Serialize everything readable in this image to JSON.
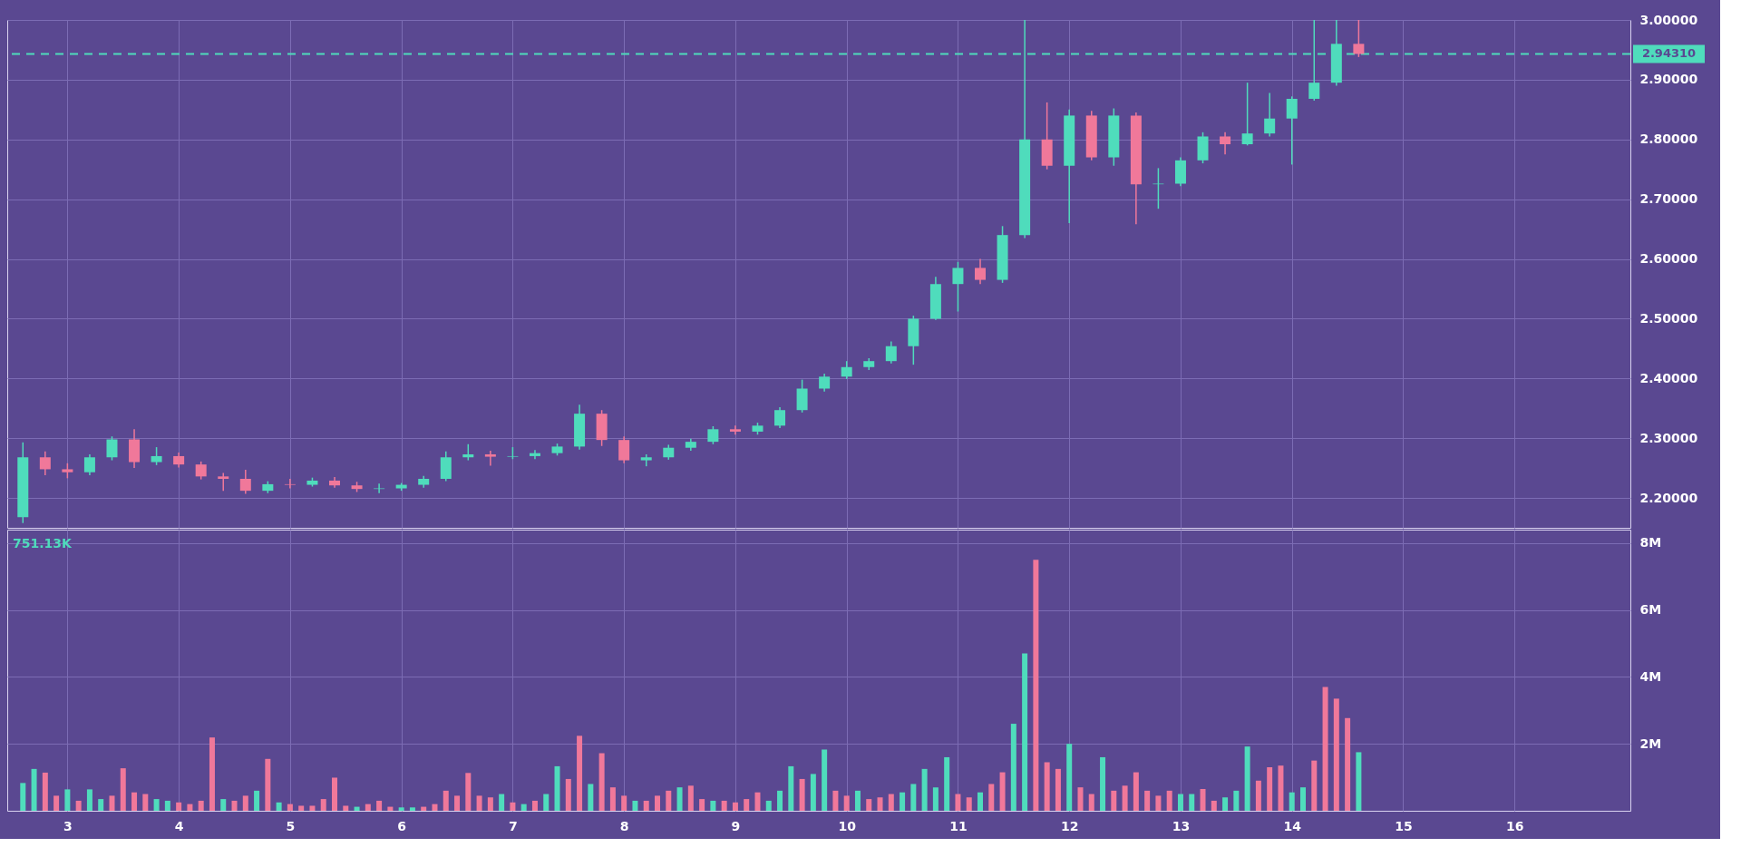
{
  "chart_data": [
    {
      "type": "candlestick",
      "x": [
        2.6,
        2.8,
        3.0,
        3.2,
        3.4,
        3.6,
        3.8,
        4.0,
        4.2,
        4.4,
        4.6,
        4.8,
        5.0,
        5.2,
        5.4,
        5.6,
        5.8,
        6.0,
        6.2,
        6.4,
        6.6,
        6.8,
        7.0,
        7.2,
        7.4,
        7.6,
        7.8,
        8.0,
        8.2,
        8.4,
        8.6,
        8.8,
        9.0,
        9.2,
        9.4,
        9.6,
        9.8,
        10.0,
        10.2,
        10.4,
        10.6,
        10.8,
        11.0,
        11.2,
        11.4,
        11.6,
        11.8,
        12.0,
        12.2,
        12.4,
        12.6,
        12.8,
        13.0,
        13.2,
        13.4,
        13.6,
        13.8,
        14.0,
        14.2,
        14.4,
        14.6
      ],
      "ohlc": [
        [
          2.168,
          2.293,
          2.158,
          2.268
        ],
        [
          2.268,
          2.278,
          2.238,
          2.248
        ],
        [
          2.248,
          2.258,
          2.233,
          2.243
        ],
        [
          2.243,
          2.273,
          2.238,
          2.268
        ],
        [
          2.268,
          2.303,
          2.263,
          2.298
        ],
        [
          2.298,
          2.315,
          2.25,
          2.26
        ],
        [
          2.26,
          2.285,
          2.255,
          2.27
        ],
        [
          2.27,
          2.276,
          2.251,
          2.256
        ],
        [
          2.256,
          2.261,
          2.231,
          2.236
        ],
        [
          2.236,
          2.242,
          2.212,
          2.232
        ],
        [
          2.232,
          2.247,
          2.207,
          2.212
        ],
        [
          2.212,
          2.228,
          2.208,
          2.223
        ],
        [
          2.223,
          2.232,
          2.216,
          2.222
        ],
        [
          2.222,
          2.234,
          2.219,
          2.229
        ],
        [
          2.229,
          2.235,
          2.217,
          2.221
        ],
        [
          2.221,
          2.227,
          2.21,
          2.215
        ],
        [
          2.215,
          2.224,
          2.208,
          2.216
        ],
        [
          2.216,
          2.225,
          2.212,
          2.222
        ],
        [
          2.222,
          2.237,
          2.217,
          2.232
        ],
        [
          2.232,
          2.278,
          2.228,
          2.268
        ],
        [
          2.268,
          2.29,
          2.263,
          2.273
        ],
        [
          2.273,
          2.279,
          2.254,
          2.269
        ],
        [
          2.269,
          2.285,
          2.265,
          2.27
        ],
        [
          2.27,
          2.28,
          2.265,
          2.275
        ],
        [
          2.275,
          2.291,
          2.271,
          2.286
        ],
        [
          2.286,
          2.356,
          2.281,
          2.341
        ],
        [
          2.341,
          2.347,
          2.287,
          2.297
        ],
        [
          2.297,
          2.303,
          2.258,
          2.263
        ],
        [
          2.263,
          2.273,
          2.253,
          2.268
        ],
        [
          2.268,
          2.289,
          2.264,
          2.284
        ],
        [
          2.284,
          2.299,
          2.279,
          2.294
        ],
        [
          2.294,
          2.32,
          2.29,
          2.315
        ],
        [
          2.315,
          2.321,
          2.306,
          2.311
        ],
        [
          2.311,
          2.326,
          2.306,
          2.321
        ],
        [
          2.321,
          2.352,
          2.317,
          2.347
        ],
        [
          2.347,
          2.398,
          2.343,
          2.383
        ],
        [
          2.383,
          2.408,
          2.378,
          2.403
        ],
        [
          2.403,
          2.429,
          2.399,
          2.419
        ],
        [
          2.419,
          2.434,
          2.414,
          2.429
        ],
        [
          2.429,
          2.462,
          2.425,
          2.454
        ],
        [
          2.454,
          2.505,
          2.423,
          2.5
        ],
        [
          2.5,
          2.57,
          2.498,
          2.558
        ],
        [
          2.558,
          2.595,
          2.512,
          2.585
        ],
        [
          2.585,
          2.6,
          2.558,
          2.565
        ],
        [
          2.565,
          2.655,
          2.56,
          2.64
        ],
        [
          2.64,
          3.0,
          2.635,
          2.8
        ],
        [
          2.8,
          2.862,
          2.75,
          2.756
        ],
        [
          2.756,
          2.85,
          2.66,
          2.84
        ],
        [
          2.84,
          2.848,
          2.765,
          2.77
        ],
        [
          2.77,
          2.852,
          2.756,
          2.84
        ],
        [
          2.84,
          2.845,
          2.658,
          2.725
        ],
        [
          2.725,
          2.752,
          2.684,
          2.726
        ],
        [
          2.726,
          2.77,
          2.722,
          2.765
        ],
        [
          2.765,
          2.812,
          2.76,
          2.805
        ],
        [
          2.805,
          2.812,
          2.775,
          2.792
        ],
        [
          2.792,
          2.895,
          2.79,
          2.81
        ],
        [
          2.81,
          2.878,
          2.805,
          2.835
        ],
        [
          2.835,
          2.872,
          2.758,
          2.868
        ],
        [
          2.868,
          3.0,
          2.865,
          2.895
        ],
        [
          2.895,
          3.0,
          2.89,
          2.96
        ],
        [
          2.96,
          3.0,
          2.938,
          2.9431
        ]
      ],
      "colors": [
        "#4fdcbc",
        "#f0789a",
        "#f0789a",
        "#4fdcbc",
        "#4fdcbc",
        "#f0789a",
        "#4fdcbc",
        "#f0789a",
        "#f0789a",
        "#f0789a",
        "#f0789a",
        "#4fdcbc",
        "#f0789a",
        "#4fdcbc",
        "#f0789a",
        "#f0789a",
        "#4fdcbc",
        "#4fdcbc",
        "#4fdcbc",
        "#4fdcbc",
        "#4fdcbc",
        "#f0789a",
        "#4fdcbc",
        "#4fdcbc",
        "#4fdcbc",
        "#4fdcbc",
        "#f0789a",
        "#f0789a",
        "#4fdcbc",
        "#4fdcbc",
        "#4fdcbc",
        "#4fdcbc",
        "#f0789a",
        "#4fdcbc",
        "#4fdcbc",
        "#4fdcbc",
        "#4fdcbc",
        "#4fdcbc",
        "#4fdcbc",
        "#4fdcbc",
        "#4fdcbc",
        "#4fdcbc",
        "#4fdcbc",
        "#f0789a",
        "#4fdcbc",
        "#4fdcbc",
        "#f0789a",
        "#4fdcbc",
        "#f0789a",
        "#4fdcbc",
        "#f0789a",
        "#4fdcbc",
        "#4fdcbc",
        "#4fdcbc",
        "#f0789a",
        "#4fdcbc",
        "#4fdcbc",
        "#4fdcbc",
        "#4fdcbc",
        "#4fdcbc",
        "#f0789a"
      ],
      "xlim": [
        2.5,
        17.0
      ],
      "xticks": [
        3,
        4,
        5,
        6,
        7,
        8,
        9,
        10,
        11,
        12,
        13,
        14,
        15,
        16
      ],
      "ylim": [
        2.15,
        3.0
      ],
      "yticks": [
        {
          "value": 2.2,
          "label": "2.20000"
        },
        {
          "value": 2.3,
          "label": "2.30000"
        },
        {
          "value": 2.4,
          "label": "2.40000"
        },
        {
          "value": 2.5,
          "label": "2.50000"
        },
        {
          "value": 2.6,
          "label": "2.60000"
        },
        {
          "value": 2.7,
          "label": "2.70000"
        },
        {
          "value": 2.8,
          "label": "2.80000"
        },
        {
          "value": 2.9,
          "label": "2.90000"
        },
        {
          "value": 3.0,
          "label": "3.00000"
        }
      ],
      "tick_labels": "y",
      "grid": true,
      "ref_lines": [
        {
          "axis": "y",
          "value": 2.9431,
          "label": "2.94310",
          "color": "#4fdcbc",
          "line_style": "dashed"
        }
      ]
    },
    {
      "type": "bar",
      "x": [
        2.6,
        2.7,
        2.8,
        2.9,
        3.0,
        3.1,
        3.2,
        3.3,
        3.4,
        3.5,
        3.6,
        3.7,
        3.8,
        3.9,
        4.0,
        4.1,
        4.2,
        4.3,
        4.4,
        4.5,
        4.6,
        4.7,
        4.8,
        4.9,
        5.0,
        5.1,
        5.2,
        5.3,
        5.4,
        5.5,
        5.6,
        5.7,
        5.8,
        5.9,
        6.0,
        6.1,
        6.2,
        6.3,
        6.4,
        6.5,
        6.6,
        6.7,
        6.8,
        6.9,
        7.0,
        7.1,
        7.2,
        7.3,
        7.4,
        7.5,
        7.6,
        7.7,
        7.8,
        7.9,
        8.0,
        8.1,
        8.2,
        8.3,
        8.4,
        8.5,
        8.6,
        8.7,
        8.8,
        8.9,
        9.0,
        9.1,
        9.2,
        9.3,
        9.4,
        9.5,
        9.6,
        9.7,
        9.8,
        9.9,
        10.0,
        10.1,
        10.2,
        10.3,
        10.4,
        10.5,
        10.6,
        10.7,
        10.8,
        10.9,
        11.0,
        11.1,
        11.2,
        11.3,
        11.4,
        11.5,
        11.6,
        11.7,
        11.8,
        11.9,
        12.0,
        12.1,
        12.2,
        12.3,
        12.4,
        12.5,
        12.6,
        12.7,
        12.8,
        12.9,
        13.0,
        13.1,
        13.2,
        13.3,
        13.4,
        13.5,
        13.6,
        13.7,
        13.8,
        13.9,
        14.0,
        14.1,
        14.2,
        14.3,
        14.4,
        14.5,
        14.6
      ],
      "values": [
        0.83,
        1.25,
        1.14,
        0.45,
        0.64,
        0.3,
        0.64,
        0.35,
        0.45,
        1.27,
        0.55,
        0.5,
        0.35,
        0.3,
        0.25,
        0.2,
        0.3,
        2.19,
        0.35,
        0.3,
        0.45,
        0.6,
        1.55,
        0.25,
        0.2,
        0.15,
        0.15,
        0.35,
        0.99,
        0.15,
        0.12,
        0.2,
        0.3,
        0.12,
        0.1,
        0.1,
        0.12,
        0.2,
        0.6,
        0.45,
        1.13,
        0.45,
        0.4,
        0.5,
        0.25,
        0.2,
        0.3,
        0.5,
        1.33,
        0.95,
        2.24,
        0.8,
        1.72,
        0.7,
        0.45,
        0.3,
        0.3,
        0.45,
        0.6,
        0.7,
        0.75,
        0.35,
        0.3,
        0.3,
        0.25,
        0.35,
        0.55,
        0.3,
        0.6,
        1.33,
        0.95,
        1.1,
        1.83,
        0.6,
        0.45,
        0.6,
        0.35,
        0.4,
        0.5,
        0.55,
        0.8,
        1.25,
        0.7,
        1.6,
        0.5,
        0.4,
        0.55,
        0.8,
        1.15,
        2.6,
        4.7,
        7.5,
        1.45,
        1.25,
        2.0,
        0.7,
        0.5,
        1.6,
        0.6,
        0.75,
        1.15,
        0.6,
        0.45,
        0.6,
        0.5,
        0.5,
        0.65,
        0.3,
        0.4,
        0.6,
        1.92,
        0.9,
        1.3,
        1.35,
        0.55,
        0.7,
        1.5,
        3.7,
        3.35,
        2.77,
        1.75
      ],
      "colors": [
        "#4fdcbc",
        "#4fdcbc",
        "#f0789a",
        "#f0789a",
        "#4fdcbc",
        "#f0789a",
        "#4fdcbc",
        "#4fdcbc",
        "#f0789a",
        "#f0789a",
        "#f0789a",
        "#f0789a",
        "#4fdcbc",
        "#4fdcbc",
        "#f0789a",
        "#f0789a",
        "#f0789a",
        "#f0789a",
        "#4fdcbc",
        "#f0789a",
        "#f0789a",
        "#4fdcbc",
        "#f0789a",
        "#4fdcbc",
        "#f0789a",
        "#f0789a",
        "#f0789a",
        "#f0789a",
        "#f0789a",
        "#f0789a",
        "#4fdcbc",
        "#f0789a",
        "#f0789a",
        "#f0789a",
        "#4fdcbc",
        "#4fdcbc",
        "#f0789a",
        "#f0789a",
        "#f0789a",
        "#f0789a",
        "#f0789a",
        "#f0789a",
        "#f0789a",
        "#4fdcbc",
        "#f0789a",
        "#4fdcbc",
        "#f0789a",
        "#4fdcbc",
        "#4fdcbc",
        "#f0789a",
        "#f0789a",
        "#4fdcbc",
        "#f0789a",
        "#f0789a",
        "#f0789a",
        "#4fdcbc",
        "#f0789a",
        "#f0789a",
        "#f0789a",
        "#4fdcbc",
        "#f0789a",
        "#f0789a",
        "#4fdcbc",
        "#f0789a",
        "#f0789a",
        "#f0789a",
        "#f0789a",
        "#4fdcbc",
        "#4fdcbc",
        "#4fdcbc",
        "#f0789a",
        "#4fdcbc",
        "#4fdcbc",
        "#f0789a",
        "#f0789a",
        "#4fdcbc",
        "#f0789a",
        "#f0789a",
        "#f0789a",
        "#4fdcbc",
        "#4fdcbc",
        "#4fdcbc",
        "#4fdcbc",
        "#4fdcbc",
        "#f0789a",
        "#f0789a",
        "#4fdcbc",
        "#f0789a",
        "#f0789a",
        "#4fdcbc",
        "#4fdcbc",
        "#f0789a",
        "#f0789a",
        "#f0789a",
        "#4fdcbc",
        "#f0789a",
        "#f0789a",
        "#4fdcbc",
        "#f0789a",
        "#f0789a",
        "#f0789a",
        "#f0789a",
        "#f0789a",
        "#f0789a",
        "#4fdcbc",
        "#4fdcbc",
        "#f0789a",
        "#f0789a",
        "#4fdcbc",
        "#4fdcbc",
        "#4fdcbc",
        "#f0789a",
        "#f0789a",
        "#f0789a",
        "#4fdcbc",
        "#4fdcbc",
        "#f0789a",
        "#f0789a",
        "#f0789a",
        "#f0789a",
        "#4fdcbc"
      ],
      "xlim": [
        2.5,
        17.0
      ],
      "xticks": [
        3,
        4,
        5,
        6,
        7,
        8,
        9,
        10,
        11,
        12,
        13,
        14,
        15,
        16
      ],
      "ylim": [
        0,
        8.4
      ],
      "yticks": [
        {
          "value": 2,
          "label": "2M"
        },
        {
          "value": 4,
          "label": "4M"
        },
        {
          "value": 6,
          "label": "6M"
        },
        {
          "value": 8,
          "label": "8M"
        }
      ],
      "grid": true,
      "annotations": [
        "751.13K"
      ]
    }
  ]
}
